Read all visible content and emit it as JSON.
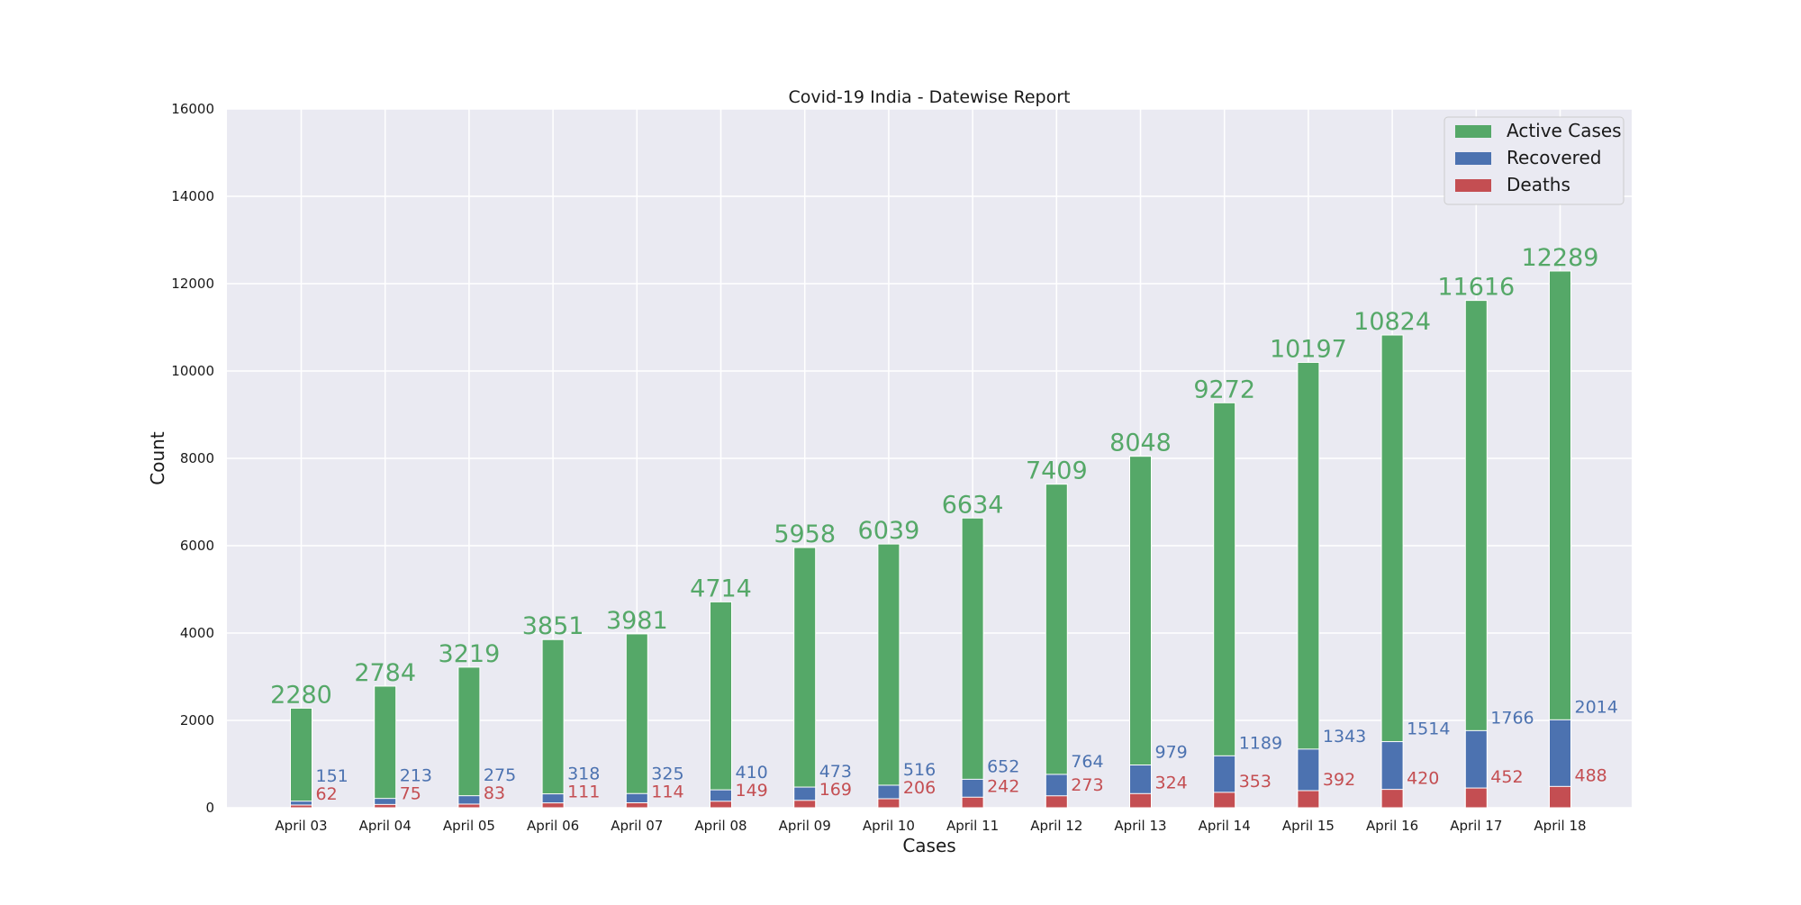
{
  "colors": {
    "active": "#55a868",
    "recovered": "#4c72b0",
    "deaths": "#c44e52",
    "plot_background": "#eaeaf2",
    "grid": "#ffffff"
  },
  "chart_data": {
    "type": "bar",
    "title": "Covid-19 India - Datewise Report",
    "xlabel": "Cases",
    "ylabel": "Count",
    "ylim": [
      0,
      16000
    ],
    "yticks": [
      0,
      2000,
      4000,
      6000,
      8000,
      10000,
      12000,
      14000,
      16000
    ],
    "grid": true,
    "legend_position": "top-right",
    "stacked": true,
    "categories": [
      "April 03",
      "April 04",
      "April 05",
      "April 06",
      "April 07",
      "April 08",
      "April 09",
      "April 10",
      "April 11",
      "April 12",
      "April 13",
      "April 14",
      "April 15",
      "April 16",
      "April 17",
      "April 18"
    ],
    "series": [
      {
        "name": "Active Cases",
        "color": "#55a868",
        "values": [
          2280,
          2784,
          3219,
          3851,
          3981,
          4714,
          5958,
          6039,
          6634,
          7409,
          8048,
          9272,
          10197,
          10824,
          11616,
          12289
        ]
      },
      {
        "name": "Recovered",
        "color": "#4c72b0",
        "values": [
          151,
          213,
          275,
          318,
          325,
          410,
          473,
          516,
          652,
          764,
          979,
          1189,
          1343,
          1514,
          1766,
          2014
        ]
      },
      {
        "name": "Deaths",
        "color": "#c44e52",
        "values": [
          62,
          75,
          83,
          111,
          114,
          149,
          169,
          206,
          242,
          273,
          324,
          353,
          392,
          420,
          452,
          488
        ]
      }
    ]
  }
}
